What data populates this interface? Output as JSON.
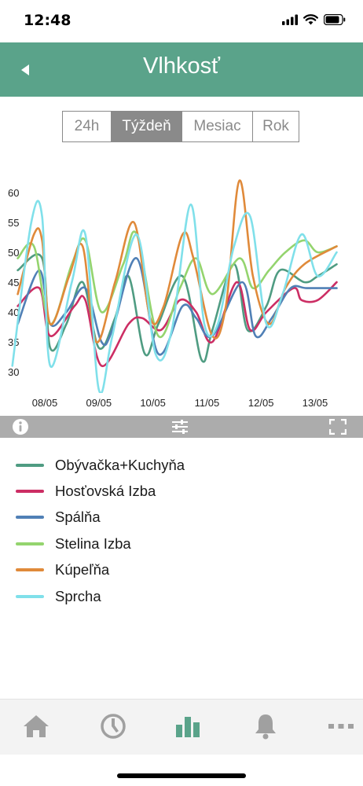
{
  "status_bar": {
    "time": "12:48"
  },
  "header": {
    "title": "Vlhkosť"
  },
  "period_tabs": [
    {
      "label": "24h",
      "active": false
    },
    {
      "label": "Týždeň",
      "active": true
    },
    {
      "label": "Mesiac",
      "active": false
    },
    {
      "label": "Rok",
      "active": false
    }
  ],
  "colors": {
    "header": "#5aa38a",
    "toolbar": "#acacac",
    "tab_active": "#5aa38a",
    "tab_inactive": "#a0a0a0"
  },
  "icons": {
    "back": "back-arrow-icon",
    "info": "info-icon",
    "filter": "sliders-icon",
    "fullscreen": "fullscreen-icon",
    "tabs": [
      "home-icon",
      "clock-icon",
      "bar-chart-icon",
      "bell-icon",
      "more-icon"
    ]
  },
  "chart_data": {
    "type": "line",
    "title": "",
    "xlabel": "",
    "ylabel": "",
    "ylim": [
      26,
      64
    ],
    "yticks": [
      "30",
      "35",
      "40",
      "45",
      "50",
      "55",
      "60"
    ],
    "x_ticks": [
      "08/05",
      "09/05",
      "10/05",
      "11/05",
      "12/05",
      "13/05"
    ],
    "x_range": [
      7.55,
      13.6
    ],
    "grid": false,
    "legend_position": "bottom",
    "series": [
      {
        "name": "Obývačka+Kuchyňa",
        "color": "#4f9c82",
        "x": [
          7.5,
          7.95,
          8.1,
          8.4,
          8.7,
          9.0,
          9.3,
          9.55,
          9.85,
          10.1,
          10.55,
          10.9,
          11.1,
          11.5,
          11.75,
          12.1,
          12.35,
          12.8,
          13.05,
          13.4
        ],
        "y": [
          47,
          49,
          34,
          38,
          45,
          34,
          39,
          46,
          33,
          38,
          46,
          32,
          37,
          48,
          37,
          41,
          47,
          45,
          46,
          48
        ]
      },
      {
        "name": "Hosťovská Izba",
        "color": "#cc2e64",
        "x": [
          7.5,
          7.9,
          8.1,
          8.55,
          8.75,
          9.05,
          9.55,
          9.8,
          10.15,
          10.5,
          10.8,
          11.1,
          11.55,
          11.8,
          12.1,
          12.6,
          12.75,
          13.05,
          13.4
        ],
        "y": [
          41,
          44,
          36,
          41,
          42,
          31,
          38,
          39,
          37,
          42,
          40,
          35,
          45,
          37,
          40,
          44,
          42,
          42,
          45
        ]
      },
      {
        "name": "Spálňa",
        "color": "#5080b6",
        "x": [
          7.5,
          7.9,
          8.1,
          8.4,
          8.75,
          9.05,
          9.25,
          9.7,
          10.1,
          10.55,
          10.8,
          11.1,
          11.65,
          11.9,
          12.2,
          12.55,
          12.85,
          13.4
        ],
        "y": [
          38,
          47,
          38,
          40,
          44,
          35,
          37,
          49,
          33,
          41,
          39,
          36,
          45,
          36,
          39,
          44,
          44,
          44
        ]
      },
      {
        "name": "Stelina Izba",
        "color": "#94d46e",
        "x": [
          7.5,
          7.8,
          8.1,
          8.5,
          8.75,
          9.05,
          9.45,
          9.7,
          10.1,
          10.5,
          10.8,
          11.1,
          11.6,
          11.85,
          12.15,
          12.45,
          12.8,
          13.05,
          13.4
        ],
        "y": [
          49,
          51,
          38,
          48,
          52,
          40,
          48,
          53,
          36,
          44,
          49,
          43,
          49,
          44,
          47,
          50,
          52,
          50,
          51
        ]
      },
      {
        "name": "Kúpeľňa",
        "color": "#e08a3a",
        "x": [
          7.5,
          7.8,
          7.95,
          8.1,
          8.45,
          8.7,
          8.95,
          9.3,
          9.65,
          9.95,
          10.2,
          10.55,
          10.75,
          11.1,
          11.35,
          11.6,
          11.85,
          12.15,
          12.45,
          12.8,
          13.4
        ],
        "y": [
          43,
          53,
          52,
          38,
          46,
          51,
          35,
          45,
          55,
          39,
          41,
          53,
          49,
          36,
          41,
          62,
          46,
          38,
          44,
          48,
          51
        ]
      },
      {
        "name": "Sprcha",
        "color": "#80e0ea",
        "x": [
          7.4,
          7.75,
          7.95,
          8.1,
          8.5,
          8.75,
          9.0,
          9.25,
          9.7,
          10.05,
          10.35,
          10.7,
          10.95,
          11.2,
          11.5,
          11.8,
          12.1,
          12.4,
          12.75,
          13.05,
          13.4
        ],
        "y": [
          31,
          55,
          56,
          31,
          45,
          53,
          27,
          36,
          53,
          33,
          37,
          58,
          38,
          38,
          51,
          56,
          38,
          43,
          53,
          46,
          50
        ]
      }
    ]
  },
  "legend": [
    {
      "label": "Obývačka+Kuchyňa",
      "color": "#4f9c82"
    },
    {
      "label": "Hosťovská Izba",
      "color": "#cc2e64"
    },
    {
      "label": "Spálňa",
      "color": "#5080b6"
    },
    {
      "label": "Stelina Izba",
      "color": "#94d46e"
    },
    {
      "label": "Kúpeľňa",
      "color": "#e08a3a"
    },
    {
      "label": "Sprcha",
      "color": "#80e0ea"
    }
  ]
}
